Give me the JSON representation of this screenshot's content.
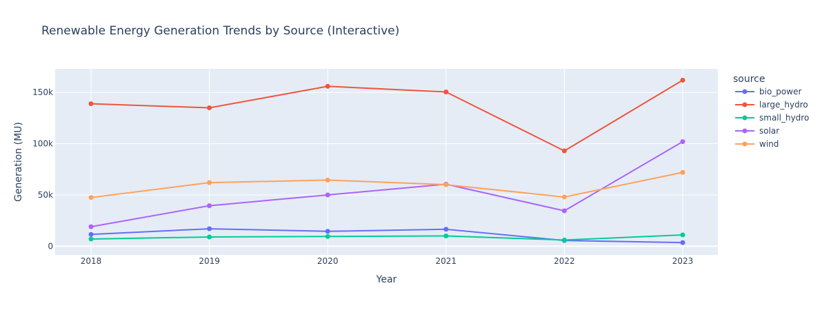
{
  "chart_data": {
    "type": "line",
    "title": "Renewable Energy Generation Trends by Source (Interactive)",
    "xlabel": "Year",
    "ylabel": "Generation (MU)",
    "categories": [
      "2018",
      "2019",
      "2020",
      "2021",
      "2022",
      "2023"
    ],
    "ylim": [
      -8500,
      173000
    ],
    "yticks": [
      0,
      50000,
      100000,
      150000
    ],
    "ytick_labels": [
      "0",
      "50k",
      "100k",
      "150k"
    ],
    "grid": true,
    "legend_title": "source",
    "legend_position": "right",
    "series": [
      {
        "name": "bio_power",
        "color": "#636efa",
        "values": [
          11500,
          17000,
          14500,
          16500,
          5500,
          3500
        ]
      },
      {
        "name": "large_hydro",
        "color": "#ef553b",
        "values": [
          139000,
          135000,
          156000,
          150500,
          93000,
          162000
        ]
      },
      {
        "name": "small_hydro",
        "color": "#00cc96",
        "values": [
          7000,
          9000,
          9500,
          10000,
          6000,
          11000
        ]
      },
      {
        "name": "solar",
        "color": "#ab63fa",
        "values": [
          19000,
          39500,
          50000,
          60500,
          34500,
          102000
        ]
      },
      {
        "name": "wind",
        "color": "#ffa15a",
        "values": [
          47500,
          62000,
          64500,
          60000,
          48000,
          72000
        ]
      }
    ]
  }
}
